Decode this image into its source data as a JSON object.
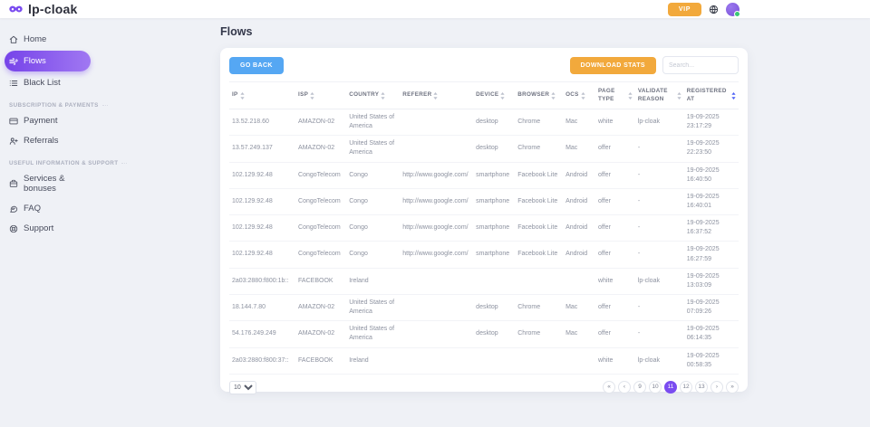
{
  "colors": {
    "accent": "#7a4cf0",
    "accent_grad_start": "#7643e9",
    "accent_grad_end": "#a078f2",
    "primary_blue": "#55a7f3",
    "primary_orange": "#f2a93c",
    "online_green": "#3bc876",
    "sort_active": "#4a5ef5"
  },
  "topbar": {
    "logo_text": "lp-cloak",
    "vip_label": "VIP"
  },
  "sidebar": {
    "groups": [
      {
        "label": "",
        "items": [
          {
            "label": "Home",
            "icon": "home-icon",
            "active": false
          },
          {
            "label": "Flows",
            "icon": "flows-icon",
            "active": true
          },
          {
            "label": "Black List",
            "icon": "blacklist-icon",
            "active": false
          }
        ]
      },
      {
        "label": "SUBSCRIPTION & PAYMENTS",
        "items": [
          {
            "label": "Payment",
            "icon": "payment-icon",
            "active": false
          },
          {
            "label": "Referrals",
            "icon": "referrals-icon",
            "active": false
          }
        ]
      },
      {
        "label": "USEFUL INFORMATION & SUPPORT",
        "items": [
          {
            "label": "Services & bonuses",
            "icon": "services-icon",
            "active": false
          },
          {
            "label": "FAQ",
            "icon": "faq-icon",
            "active": false
          },
          {
            "label": "Support",
            "icon": "support-icon",
            "active": false
          }
        ]
      }
    ]
  },
  "page": {
    "title": "Flows"
  },
  "toolbar": {
    "go_back_label": "GO BACK",
    "download_stats_label": "DOWNLOAD STATS",
    "search_placeholder": "Search..."
  },
  "table": {
    "columns": [
      "IP",
      "ISP",
      "COUNTRY",
      "REFERER",
      "DEVICE",
      "BROWSER",
      "OCS",
      "PAGE TYPE",
      "VALIDATE REASON",
      "REGISTERED AT"
    ],
    "column_widths": [
      "13%",
      "10%",
      "10.5%",
      "14.4%",
      "8.2%",
      "9.4%",
      "6.4%",
      "7.8%",
      "9.6%",
      "10.7%"
    ],
    "sorted_column": "REGISTERED AT",
    "sort_direction": "desc",
    "rows": [
      {
        "ip": "13.52.218.60",
        "isp": "AMAZON-02",
        "country": "United States of America",
        "referer": "",
        "device": "desktop",
        "browser": "Chrome",
        "ocs": "Mac",
        "page_type": "white",
        "validate_reason": "lp-cloak",
        "registered_date": "19-09-2025",
        "registered_time": "23:17:29"
      },
      {
        "ip": "13.57.249.137",
        "isp": "AMAZON-02",
        "country": "United States of America",
        "referer": "",
        "device": "desktop",
        "browser": "Chrome",
        "ocs": "Mac",
        "page_type": "offer",
        "validate_reason": "-",
        "registered_date": "19-09-2025",
        "registered_time": "22:23:50"
      },
      {
        "ip": "102.129.92.48",
        "isp": "CongoTelecom",
        "country": "Congo",
        "referer": "http://www.google.com/",
        "device": "smartphone",
        "browser": "Facebook Lite",
        "ocs": "Android",
        "page_type": "offer",
        "validate_reason": "-",
        "registered_date": "19-09-2025",
        "registered_time": "16:40:50"
      },
      {
        "ip": "102.129.92.48",
        "isp": "CongoTelecom",
        "country": "Congo",
        "referer": "http://www.google.com/",
        "device": "smartphone",
        "browser": "Facebook Lite",
        "ocs": "Android",
        "page_type": "offer",
        "validate_reason": "-",
        "registered_date": "19-09-2025",
        "registered_time": "16:40:01"
      },
      {
        "ip": "102.129.92.48",
        "isp": "CongoTelecom",
        "country": "Congo",
        "referer": "http://www.google.com/",
        "device": "smartphone",
        "browser": "Facebook Lite",
        "ocs": "Android",
        "page_type": "offer",
        "validate_reason": "-",
        "registered_date": "19-09-2025",
        "registered_time": "16:37:52"
      },
      {
        "ip": "102.129.92.48",
        "isp": "CongoTelecom",
        "country": "Congo",
        "referer": "http://www.google.com/",
        "device": "smartphone",
        "browser": "Facebook Lite",
        "ocs": "Android",
        "page_type": "offer",
        "validate_reason": "-",
        "registered_date": "19-09-2025",
        "registered_time": "16:27:59"
      },
      {
        "ip": "2a03:2880:f800:1b::",
        "isp": "FACEBOOK",
        "country": "Ireland",
        "referer": "",
        "device": "",
        "browser": "",
        "ocs": "",
        "page_type": "white",
        "validate_reason": "lp-cloak",
        "registered_date": "19-09-2025",
        "registered_time": "13:03:09"
      },
      {
        "ip": "18.144.7.80",
        "isp": "AMAZON-02",
        "country": "United States of America",
        "referer": "",
        "device": "desktop",
        "browser": "Chrome",
        "ocs": "Mac",
        "page_type": "offer",
        "validate_reason": "-",
        "registered_date": "19-09-2025",
        "registered_time": "07:09:26"
      },
      {
        "ip": "54.176.249.249",
        "isp": "AMAZON-02",
        "country": "United States of America",
        "referer": "",
        "device": "desktop",
        "browser": "Chrome",
        "ocs": "Mac",
        "page_type": "offer",
        "validate_reason": "-",
        "registered_date": "19-09-2025",
        "registered_time": "06:14:35"
      },
      {
        "ip": "2a03:2880:f800:37::",
        "isp": "FACEBOOK",
        "country": "Ireland",
        "referer": "",
        "device": "",
        "browser": "",
        "ocs": "",
        "page_type": "white",
        "validate_reason": "lp-cloak",
        "registered_date": "19-09-2025",
        "registered_time": "00:58:35"
      }
    ]
  },
  "footer": {
    "page_size": "10",
    "pagination": {
      "first_label": "«",
      "prev_label": "‹",
      "pages": [
        "9",
        "10",
        "11",
        "12",
        "13"
      ],
      "active_page": "11",
      "next_label": "›",
      "last_label": "»"
    }
  }
}
